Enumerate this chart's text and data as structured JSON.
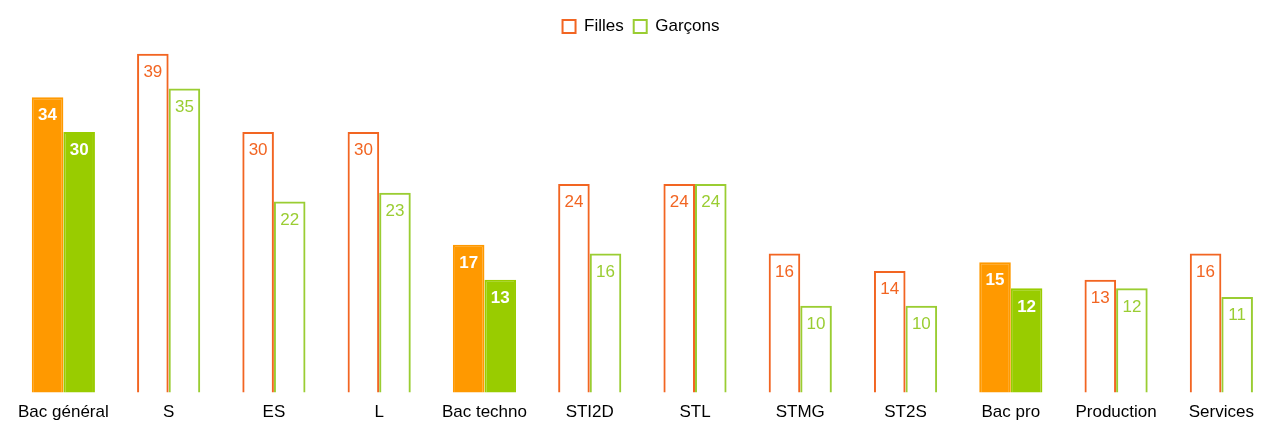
{
  "chart_data": {
    "type": "bar",
    "categories": [
      "Bac général",
      "S",
      "ES",
      "L",
      "Bac techno",
      "STI2D",
      "STL",
      "STMG",
      "ST2S",
      "Bac pro",
      "Production",
      "Services"
    ],
    "series": [
      {
        "name": "Filles",
        "color": "#f26522",
        "colors": [
          "#ff9900",
          "#f26522",
          "#f26522",
          "#f26522",
          "#ff9900",
          "#f26522",
          "#f26522",
          "#f26522",
          "#f26522",
          "#ff9900",
          "#f26522",
          "#f26522"
        ],
        "values": [
          34,
          39,
          30,
          30,
          17,
          24,
          24,
          16,
          14,
          15,
          13,
          16
        ]
      },
      {
        "name": "Garçons",
        "color": "#9acd32",
        "colors": [
          "#99cc00",
          "#9acd32",
          "#9acd32",
          "#9acd32",
          "#99cc00",
          "#9acd32",
          "#9acd32",
          "#9acd32",
          "#9acd32",
          "#99cc00",
          "#9acd32",
          "#9acd32"
        ],
        "values": [
          30,
          35,
          22,
          23,
          13,
          16,
          24,
          10,
          10,
          12,
          12,
          11
        ]
      }
    ],
    "data_labels": true,
    "legend": "top",
    "grid": false
  }
}
